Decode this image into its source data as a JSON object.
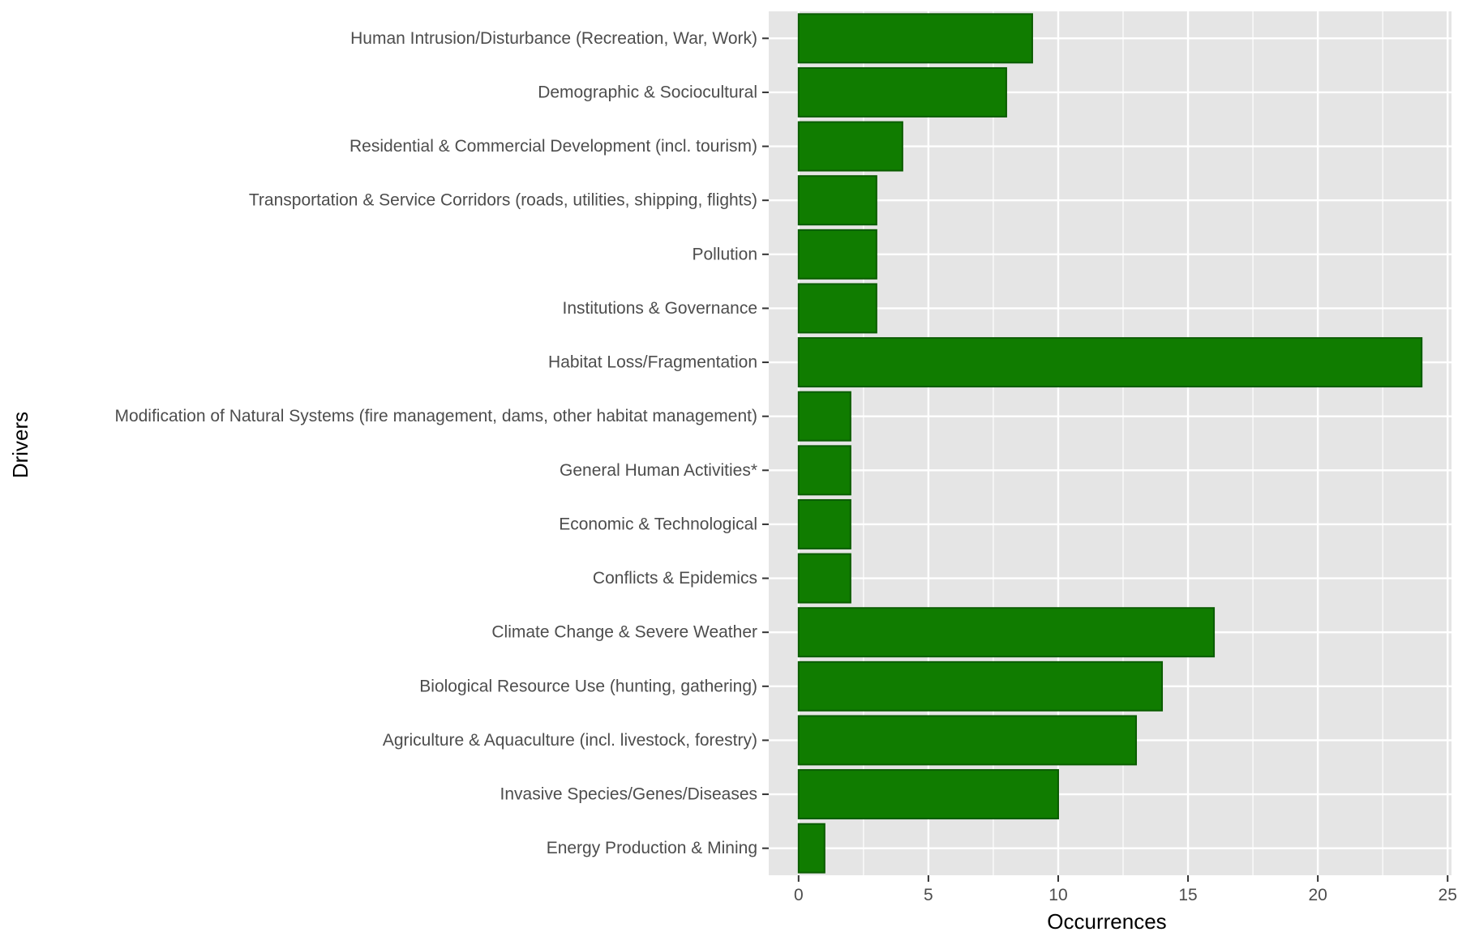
{
  "chart_data": {
    "type": "bar",
    "orientation": "horizontal",
    "xlabel": "Occurrences",
    "ylabel": "Drivers",
    "xlim": [
      -1.15,
      25.15
    ],
    "xticks": [
      0,
      5,
      10,
      15,
      20,
      25
    ],
    "grid": true,
    "legend": "none",
    "bar_fill": "#107c00",
    "bar_edge": "#0a5c00",
    "panel_bg": "#e5e5e5",
    "categories": [
      "Human Intrusion/Disturbance (Recreation, War, Work)",
      "Demographic & Sociocultural",
      "Residential & Commercial Development (incl. tourism)",
      "Transportation & Service Corridors (roads, utilities, shipping, flights)",
      "Pollution",
      "Institutions & Governance",
      "Habitat Loss/Fragmentation",
      "Modification of Natural Systems (fire management, dams, other habitat management)",
      "General Human Activities*",
      "Economic & Technological",
      "Conflicts & Epidemics",
      "Climate Change & Severe Weather",
      "Biological Resource Use (hunting, gathering)",
      "Agriculture & Aquaculture (incl. livestock, forestry)",
      "Invasive Species/Genes/Diseases",
      "Energy Production & Mining"
    ],
    "values": [
      9,
      8,
      4,
      3,
      3,
      3,
      24,
      2,
      2,
      2,
      2,
      16,
      14,
      13,
      10,
      1
    ]
  }
}
